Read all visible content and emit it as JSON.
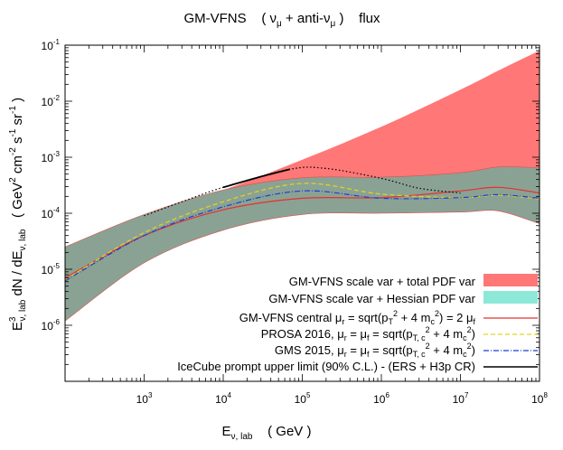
{
  "chart_data": {
    "type": "area",
    "title": {
      "prefix": "GM-VFNS",
      "nu": "ν",
      "mu_sub": "μ",
      "plus_anti": " + anti-",
      "flux": "flux"
    },
    "xlabel": {
      "main": "E",
      "sub": "ν, lab",
      "unit": "( GeV )"
    },
    "ylabel": {
      "e": "E",
      "e_sup": "3",
      "e_sub": "ν, lab",
      "dn": " dN / dE",
      "dn_sub": "ν, lab",
      "unit1": "( GeV",
      "unit1_sup": "2",
      "unit2": " cm",
      "unit2_sup": "-2",
      "unit3": " s",
      "unit3_sup": "-1",
      "unit4": " sr",
      "unit4_sup": "-1",
      "unit_close": ")"
    },
    "x_scale": "log",
    "y_scale": "log",
    "xlim": [
      100,
      100000000
    ],
    "ylim": [
      1e-07,
      0.1
    ],
    "x_ticks": [
      {
        "value": 1000,
        "base": "10",
        "exp": "3"
      },
      {
        "value": 10000,
        "base": "10",
        "exp": "4"
      },
      {
        "value": 100000,
        "base": "10",
        "exp": "5"
      },
      {
        "value": 1000000,
        "base": "10",
        "exp": "6"
      },
      {
        "value": 10000000,
        "base": "10",
        "exp": "7"
      },
      {
        "value": 100000000,
        "base": "10",
        "exp": "8"
      }
    ],
    "y_ticks": [
      {
        "value": 1e-06,
        "base": "10",
        "exp": "-6"
      },
      {
        "value": 1e-05,
        "base": "10",
        "exp": "-5"
      },
      {
        "value": 0.0001,
        "base": "10",
        "exp": "-4"
      },
      {
        "value": 0.001,
        "base": "10",
        "exp": "-3"
      },
      {
        "value": 0.01,
        "base": "10",
        "exp": "-2"
      },
      {
        "value": 0.1,
        "base": "10",
        "exp": "-1"
      }
    ],
    "legend_position": "bottom-right",
    "x": [
      100,
      1000,
      10000,
      100000,
      1000000,
      10000000,
      30000000,
      100000000
    ],
    "series": [
      {
        "id": "total_pdf",
        "style": "band",
        "color": "#ff7777",
        "legend": "GM-VFNS scale var + total PDF var",
        "lower": [
          1.2e-06,
          1.3e-05,
          5e-05,
          9.5e-05,
          0.0001,
          0.000105,
          0.00011,
          6.5e-05
        ],
        "upper": [
          2.5e-05,
          9.5e-05,
          0.00026,
          0.0009,
          0.0035,
          0.016,
          0.035,
          0.08
        ]
      },
      {
        "id": "hessian_pdf",
        "style": "band",
        "color": "#8aa294",
        "legend": "GM-VFNS scale var + Hessian PDF var",
        "lower": [
          1.2e-06,
          1.3e-05,
          5e-05,
          9.5e-05,
          0.0001,
          0.000105,
          0.00011,
          6.5e-05
        ],
        "upper": [
          2.5e-05,
          9.5e-05,
          0.00026,
          0.00043,
          0.00044,
          0.00053,
          0.00067,
          0.00065
        ]
      },
      {
        "id": "central",
        "style": "line",
        "color": "#e8302a",
        "legend": {
          "a": "GM-VFNS central μ",
          "a_sub": "r",
          "b": " = sqrt(p",
          "b_sub": "T",
          "b_sup": "2",
          "c": " + 4  m",
          "c_sub": "c",
          "c_sup": "2",
          "d": ") = 2 μ",
          "d_sub": "f"
        },
        "y": [
          7e-06,
          4e-05,
          0.000115,
          0.000185,
          0.00019,
          0.00025,
          0.00029,
          0.00023
        ]
      },
      {
        "id": "prosa",
        "style": "dash",
        "color": "#e3d61b",
        "legend": {
          "a": "PROSA 2016, μ",
          "a_sub": "r",
          "b": " = μ",
          "b_sub": "f",
          "c": " = sqrt(p",
          "c_sub": "T, c",
          "c_sup": "2",
          "d": " + 4 m",
          "d_sub": "c",
          "d_sup": "2",
          "e": ")"
        },
        "y": [
          6.5e-06,
          4.5e-05,
          0.00016,
          0.00034,
          0.00022,
          0.00019,
          0.00021,
          0.00018
        ]
      },
      {
        "id": "gms",
        "style": "dashdot",
        "color": "#1a3fd1",
        "legend": {
          "a": "GMS 2015,  μ",
          "a_sub": "r",
          "b": " = μ",
          "b_sub": "f",
          "c": " = sqrt(p",
          "c_sub": "T, c",
          "c_sup": "2",
          "d": " + 4 m",
          "d_sub": "c",
          "d_sup": "2",
          "e": ")"
        },
        "y": [
          6.2e-06,
          4e-05,
          0.00013,
          0.00025,
          0.000185,
          0.00019,
          0.000215,
          0.000185
        ]
      },
      {
        "id": "icecube",
        "style": "line",
        "color": "#000000",
        "legend": "IceCube prompt upper limit (90% C.L.) - (ERS + H3p CR)",
        "x_solid": [
          10000,
          30000,
          70000
        ],
        "y_solid": [
          0.00029,
          0.00045,
          0.00061
        ],
        "x_dotted": [
          1000,
          3000,
          10000,
          70000,
          200000,
          1000000,
          3000000,
          10000000
        ],
        "y_dotted": [
          9e-05,
          0.00016,
          0.00029,
          0.00061,
          0.00063,
          0.00042,
          0.00028,
          0.00023
        ]
      }
    ]
  }
}
